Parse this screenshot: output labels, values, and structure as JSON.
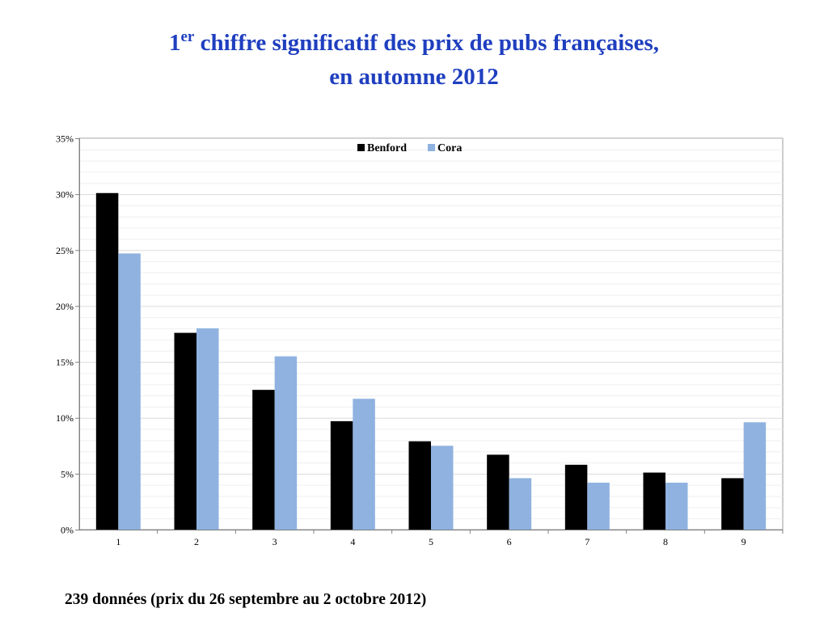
{
  "title": {
    "number": "1",
    "superscript": "er",
    "line1_rest": " chiffre significatif des prix de pubs françaises,",
    "line2": "en automne 2012"
  },
  "footnote": "239 données (prix du 26 septembre au 2 octobre 2012)",
  "colors": {
    "benford": "#000000",
    "cora": "#8fb2e0",
    "title": "#1f3fbf",
    "grid": "#dcdcdc"
  },
  "chart_data": {
    "type": "bar",
    "categories": [
      "1",
      "2",
      "3",
      "4",
      "5",
      "6",
      "7",
      "8",
      "9"
    ],
    "series": [
      {
        "name": "Benford",
        "values": [
          30.1,
          17.6,
          12.5,
          9.7,
          7.9,
          6.7,
          5.8,
          5.1,
          4.6
        ]
      },
      {
        "name": "Cora",
        "values": [
          24.7,
          18.0,
          15.5,
          11.7,
          7.5,
          4.6,
          4.2,
          4.2,
          9.6
        ]
      }
    ],
    "yticks": [
      "0%",
      "5%",
      "10%",
      "15%",
      "20%",
      "25%",
      "30%",
      "35%"
    ],
    "ylim": [
      0,
      35
    ],
    "grid": true,
    "legend_position": "top-center",
    "xlabel": "",
    "ylabel": ""
  }
}
